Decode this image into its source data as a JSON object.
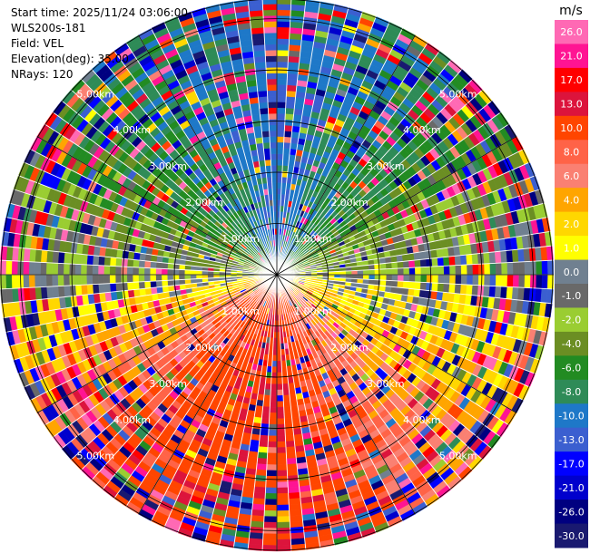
{
  "info": {
    "start_time": "Start time: 2025/11/24 03:06:00",
    "instrument": "WLS200s-181",
    "field": "Field: VEL",
    "elevation": "Elevation(deg): 35.00",
    "nrays": "NRays: 120"
  },
  "chart_data": {
    "type": "heatmap",
    "projection": "polar-ppi",
    "field": "VEL",
    "units": "m/s",
    "n_rays": 120,
    "max_range_km": 5.4,
    "range_rings_km": [
      1.0,
      2.0,
      3.0,
      4.0,
      5.0
    ],
    "ring_labels": [
      "1.00km",
      "2.00km",
      "3.00km",
      "4.00km",
      "5.00km"
    ],
    "grid": true,
    "azimuth_spokes_deg": [
      0,
      30,
      60,
      90,
      120,
      150,
      180,
      210,
      240,
      270,
      300,
      330
    ],
    "sector_velocity_ms": [
      {
        "azimuth_deg": 0,
        "value": -10.0
      },
      {
        "azimuth_deg": 45,
        "value": -6.0
      },
      {
        "azimuth_deg": 90,
        "value": 0.0
      },
      {
        "azimuth_deg": 135,
        "value": 6.0
      },
      {
        "azimuth_deg": 180,
        "value": 13.0
      },
      {
        "azimuth_deg": 225,
        "value": 10.0
      },
      {
        "azimuth_deg": 270,
        "value": 0.0
      },
      {
        "azimuth_deg": 315,
        "value": -6.0
      }
    ],
    "colorbar": {
      "position": "right",
      "unit_label": "m/s",
      "ticks": [
        "26.0",
        "21.0",
        "17.0",
        "13.0",
        "10.0",
        "8.0",
        "6.0",
        "4.0",
        "2.0",
        "1.0",
        "0.0",
        "-1.0",
        "-2.0",
        "-4.0",
        "-6.0",
        "-8.0",
        "-10.0",
        "-13.0",
        "-17.0",
        "-21.0",
        "-26.0",
        "-30.0"
      ],
      "bins": [
        {
          "min": 26,
          "max": 30,
          "color": "#ff69b4"
        },
        {
          "min": 21,
          "max": 26,
          "color": "#ff1493"
        },
        {
          "min": 17,
          "max": 21,
          "color": "#ff0000"
        },
        {
          "min": 13,
          "max": 17,
          "color": "#dc143c"
        },
        {
          "min": 10,
          "max": 13,
          "color": "#ff4500"
        },
        {
          "min": 8,
          "max": 10,
          "color": "#ff6347"
        },
        {
          "min": 6,
          "max": 8,
          "color": "#fa8072"
        },
        {
          "min": 4,
          "max": 6,
          "color": "#ffa500"
        },
        {
          "min": 2,
          "max": 4,
          "color": "#ffd700"
        },
        {
          "min": 1,
          "max": 2,
          "color": "#ffff00"
        },
        {
          "min": 0,
          "max": 1,
          "color": "#708090"
        },
        {
          "min": -1,
          "max": 0,
          "color": "#696969"
        },
        {
          "min": -2,
          "max": -1,
          "color": "#9acd32"
        },
        {
          "min": -4,
          "max": -2,
          "color": "#6b8e23"
        },
        {
          "min": -6,
          "max": -4,
          "color": "#228b22"
        },
        {
          "min": -8,
          "max": -6,
          "color": "#2e8b57"
        },
        {
          "min": -10,
          "max": -8,
          "color": "#1e78c8"
        },
        {
          "min": -13,
          "max": -10,
          "color": "#3b5fd0"
        },
        {
          "min": -17,
          "max": -13,
          "color": "#0000ff"
        },
        {
          "min": -21,
          "max": -17,
          "color": "#0000cd"
        },
        {
          "min": -26,
          "max": -21,
          "color": "#000080"
        },
        {
          "min": -30,
          "max": -26,
          "color": "#191970"
        }
      ]
    }
  }
}
